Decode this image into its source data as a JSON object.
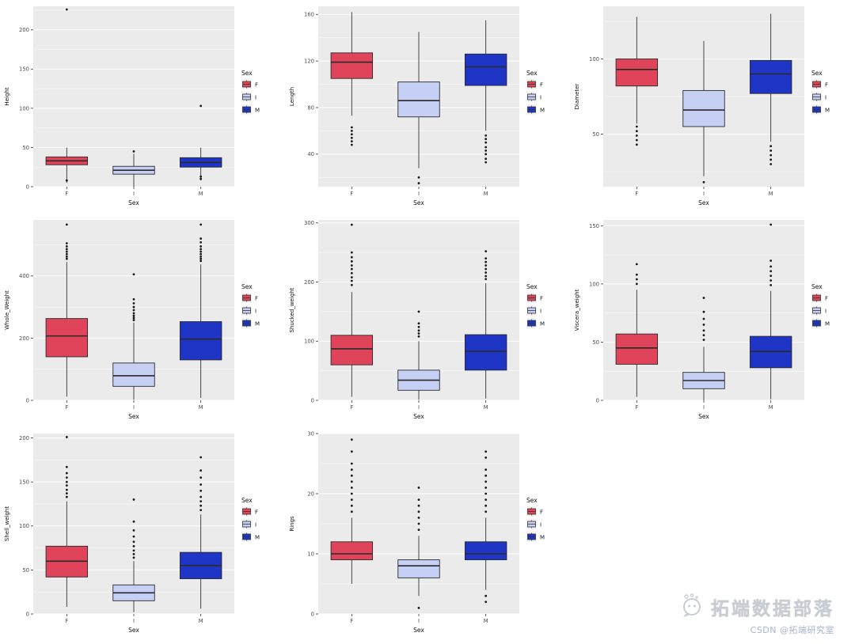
{
  "legend": {
    "title": "Sex",
    "items": [
      {
        "label": "F",
        "color": "#E0445A"
      },
      {
        "label": "I",
        "color": "#C6D0F5"
      },
      {
        "label": "M",
        "color": "#1E35C6"
      }
    ]
  },
  "watermark": {
    "brand": "拓端数据部落",
    "credit": "CSDN @拓端研究室"
  },
  "chart_data": [
    {
      "type": "boxplot",
      "ylabel": "Height",
      "xlabel": "Sex",
      "categories": [
        "F",
        "I",
        "M"
      ],
      "ylim": [
        0,
        230
      ],
      "yticks": [
        0,
        50,
        100,
        150,
        200
      ],
      "grid": true,
      "legend_position": "right",
      "series": [
        {
          "category": "F",
          "whisker_low": 5,
          "q1": 28,
          "median": 33,
          "q3": 38,
          "whisker_high": 50,
          "outliers": [
            8,
            226
          ]
        },
        {
          "category": "I",
          "whisker_low": 0,
          "q1": 16,
          "median": 21,
          "q3": 26,
          "whisker_high": 42,
          "outliers": [
            45
          ]
        },
        {
          "category": "M",
          "whisker_low": 8,
          "q1": 25,
          "median": 31,
          "q3": 37,
          "whisker_high": 50,
          "outliers": [
            10,
            13,
            103
          ]
        }
      ]
    },
    {
      "type": "boxplot",
      "ylabel": "Length",
      "xlabel": "Sex",
      "categories": [
        "F",
        "I",
        "M"
      ],
      "ylim": [
        12,
        167
      ],
      "yticks": [
        40,
        80,
        120,
        160
      ],
      "grid": true,
      "legend_position": "right",
      "series": [
        {
          "category": "F",
          "whisker_low": 73,
          "q1": 105,
          "median": 119,
          "q3": 127,
          "whisker_high": 162,
          "outliers": [
            48,
            51,
            54,
            57,
            60,
            63
          ]
        },
        {
          "category": "I",
          "whisker_low": 28,
          "q1": 72,
          "median": 86,
          "q3": 102,
          "whisker_high": 145,
          "outliers": [
            15,
            20
          ]
        },
        {
          "category": "M",
          "whisker_low": 60,
          "q1": 99,
          "median": 115,
          "q3": 126,
          "whisker_high": 155,
          "outliers": [
            33,
            36,
            40,
            43,
            46,
            50,
            53,
            56
          ]
        }
      ]
    },
    {
      "type": "boxplot",
      "ylabel": "Diameter",
      "xlabel": "Sex",
      "categories": [
        "F",
        "I",
        "M"
      ],
      "ylim": [
        15,
        135
      ],
      "yticks": [
        50,
        100
      ],
      "grid": true,
      "legend_position": "right",
      "series": [
        {
          "category": "F",
          "whisker_low": 57,
          "q1": 82,
          "median": 93,
          "q3": 100,
          "whisker_high": 128,
          "outliers": [
            43,
            46,
            49,
            52,
            55
          ]
        },
        {
          "category": "I",
          "whisker_low": 22,
          "q1": 55,
          "median": 66,
          "q3": 79,
          "whisker_high": 112,
          "outliers": [
            18
          ]
        },
        {
          "category": "M",
          "whisker_low": 45,
          "q1": 77,
          "median": 90,
          "q3": 99,
          "whisker_high": 130,
          "outliers": [
            30,
            33,
            36,
            39,
            42
          ]
        }
      ]
    },
    {
      "type": "boxplot",
      "ylabel": "Whole_Weight",
      "xlabel": "Sex",
      "categories": [
        "F",
        "I",
        "M"
      ],
      "ylim": [
        0,
        580
      ],
      "yticks": [
        0,
        200,
        400
      ],
      "grid": true,
      "legend_position": "right",
      "series": [
        {
          "category": "F",
          "whisker_low": 12,
          "q1": 140,
          "median": 207,
          "q3": 263,
          "whisker_high": 445,
          "outliers": [
            455,
            462,
            470,
            478,
            486,
            495,
            505,
            565
          ]
        },
        {
          "category": "I",
          "whisker_low": 2,
          "q1": 45,
          "median": 79,
          "q3": 120,
          "whisker_high": 250,
          "outliers": [
            258,
            265,
            272,
            280,
            290,
            300,
            312,
            325,
            405
          ]
        },
        {
          "category": "M",
          "whisker_low": 8,
          "q1": 130,
          "median": 197,
          "q3": 253,
          "whisker_high": 437,
          "outliers": [
            448,
            455,
            462,
            470,
            478,
            486,
            495,
            508,
            520,
            565
          ]
        }
      ]
    },
    {
      "type": "boxplot",
      "ylabel": "Shucked_weight",
      "xlabel": "Sex",
      "categories": [
        "F",
        "I",
        "M"
      ],
      "ylim": [
        0,
        305
      ],
      "yticks": [
        0,
        100,
        200,
        300
      ],
      "grid": true,
      "legend_position": "right",
      "series": [
        {
          "category": "F",
          "whisker_low": 6,
          "q1": 60,
          "median": 87,
          "q3": 110,
          "whisker_high": 183,
          "outliers": [
            195,
            202,
            208,
            215,
            222,
            228,
            235,
            242,
            250,
            297
          ]
        },
        {
          "category": "I",
          "whisker_low": 1,
          "q1": 17,
          "median": 34,
          "q3": 51,
          "whisker_high": 100,
          "outliers": [
            108,
            113,
            118,
            124,
            130,
            150
          ]
        },
        {
          "category": "M",
          "whisker_low": 3,
          "q1": 51,
          "median": 83,
          "q3": 111,
          "whisker_high": 198,
          "outliers": [
            205,
            210,
            216,
            222,
            228,
            234,
            240,
            252
          ]
        }
      ]
    },
    {
      "type": "boxplot",
      "ylabel": "Viscera_weight",
      "xlabel": "Sex",
      "categories": [
        "F",
        "I",
        "M"
      ],
      "ylim": [
        0,
        155
      ],
      "yticks": [
        0,
        50,
        100,
        150
      ],
      "grid": true,
      "legend_position": "right",
      "series": [
        {
          "category": "F",
          "whisker_low": 3,
          "q1": 31,
          "median": 45,
          "q3": 57,
          "whisker_high": 95,
          "outliers": [
            100,
            104,
            108,
            117
          ]
        },
        {
          "category": "I",
          "whisker_low": 0,
          "q1": 10,
          "median": 17,
          "q3": 24,
          "whisker_high": 46,
          "outliers": [
            52,
            56,
            60,
            65,
            70,
            76,
            88
          ]
        },
        {
          "category": "M",
          "whisker_low": 1,
          "q1": 28,
          "median": 42,
          "q3": 55,
          "whisker_high": 94,
          "outliers": [
            99,
            103,
            107,
            111,
            115,
            120,
            151
          ]
        }
      ]
    },
    {
      "type": "boxplot",
      "ylabel": "Shell_weight",
      "xlabel": "Sex",
      "categories": [
        "F",
        "I",
        "M"
      ],
      "ylim": [
        0,
        205
      ],
      "yticks": [
        0,
        50,
        100,
        150,
        200
      ],
      "grid": true,
      "legend_position": "right",
      "series": [
        {
          "category": "F",
          "whisker_low": 8,
          "q1": 42,
          "median": 60,
          "q3": 77,
          "whisker_high": 128,
          "outliers": [
            133,
            137,
            141,
            146,
            150,
            155,
            160,
            167,
            201
          ]
        },
        {
          "category": "I",
          "whisker_low": 2,
          "q1": 15,
          "median": 24,
          "q3": 33,
          "whisker_high": 60,
          "outliers": [
            64,
            68,
            72,
            77,
            82,
            88,
            95,
            105,
            130
          ]
        },
        {
          "category": "M",
          "whisker_low": 6,
          "q1": 40,
          "median": 55,
          "q3": 70,
          "whisker_high": 113,
          "outliers": [
            118,
            123,
            128,
            133,
            140,
            147,
            155,
            163,
            178
          ]
        }
      ]
    },
    {
      "type": "boxplot",
      "ylabel": "Rings",
      "xlabel": "Sex",
      "categories": [
        "F",
        "I",
        "M"
      ],
      "ylim": [
        0,
        30
      ],
      "yticks": [
        0,
        10,
        20,
        30
      ],
      "grid": true,
      "legend_position": "right",
      "series": [
        {
          "category": "F",
          "whisker_low": 5,
          "q1": 9,
          "median": 10,
          "q3": 12,
          "whisker_high": 16,
          "outliers": [
            17,
            18,
            19,
            20,
            21,
            22,
            23,
            24,
            25,
            27,
            29
          ]
        },
        {
          "category": "I",
          "whisker_low": 3,
          "q1": 6,
          "median": 8,
          "q3": 9,
          "whisker_high": 13,
          "outliers": [
            1,
            14,
            15,
            16,
            17,
            18,
            19,
            21
          ]
        },
        {
          "category": "M",
          "whisker_low": 4,
          "q1": 9,
          "median": 10,
          "q3": 12,
          "whisker_high": 16,
          "outliers": [
            2,
            3,
            17,
            18,
            19,
            20,
            21,
            22,
            23,
            24,
            26,
            27
          ]
        }
      ]
    }
  ]
}
